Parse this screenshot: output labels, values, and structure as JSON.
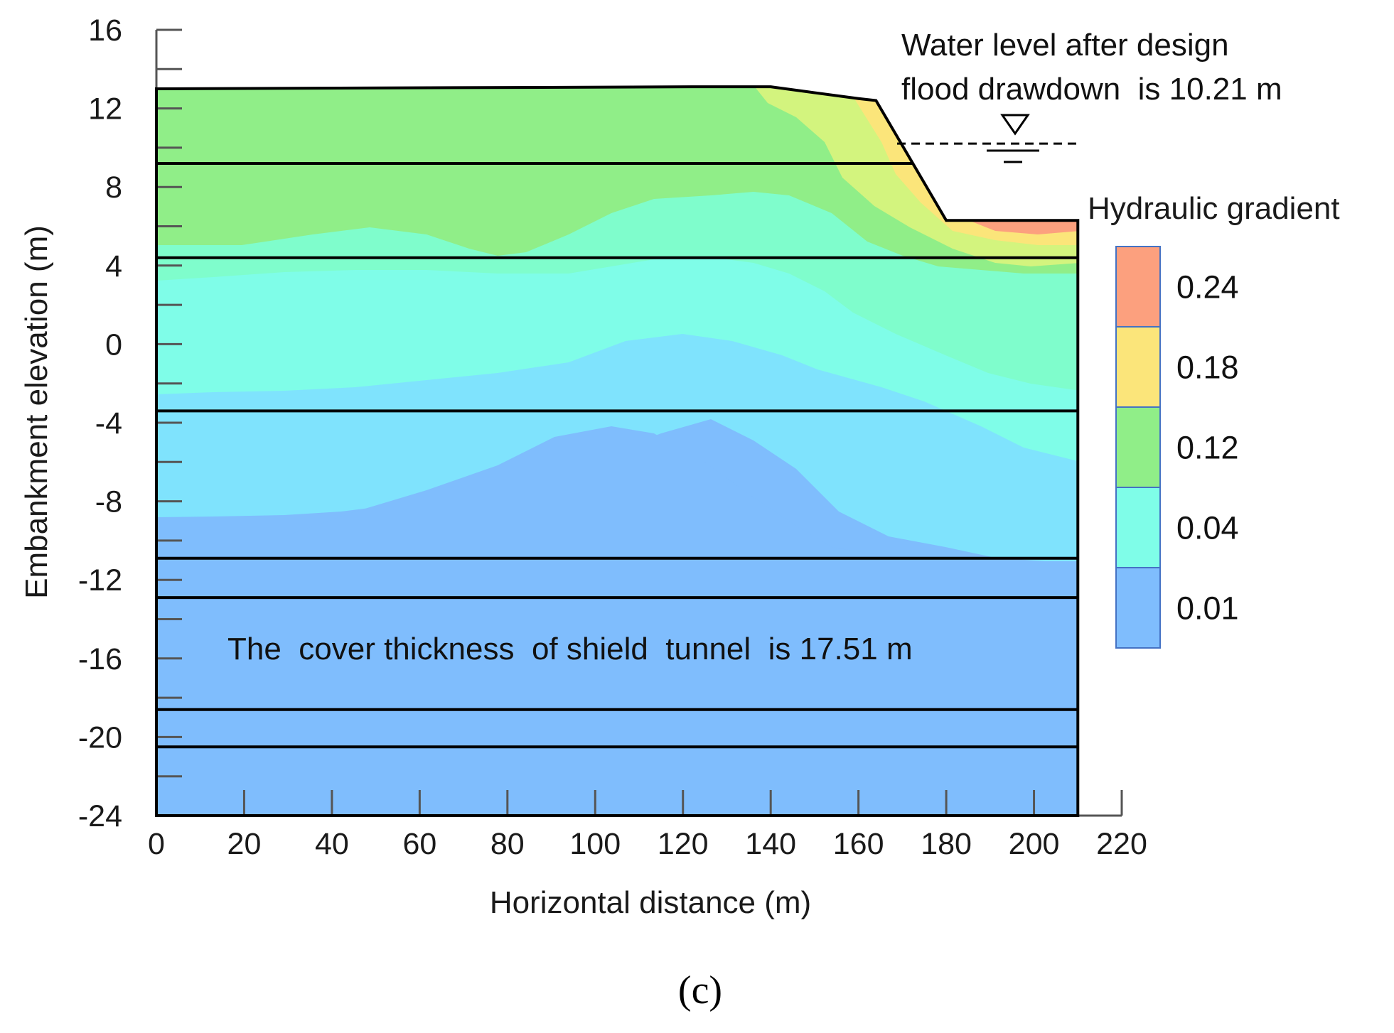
{
  "chart_data": {
    "type": "heatmap",
    "title": "",
    "xlabel": "Horizontal distance (m)",
    "ylabel": "Embankment elevation (m)",
    "xlim": [
      0,
      220
    ],
    "ylim": [
      -24,
      16
    ],
    "x_ticks": [
      "0",
      "20",
      "40",
      "60",
      "80",
      "100",
      "120",
      "140",
      "160",
      "180",
      "200",
      "220"
    ],
    "y_ticks": [
      "16",
      "12",
      "8",
      "4",
      "0",
      "-4",
      "-8",
      "-12",
      "-16",
      "-20",
      "-24"
    ],
    "legend": {
      "title": "Hydraulic gradient",
      "entries": [
        {
          "label": "0.24",
          "color": "#fca07e"
        },
        {
          "label": "0.18",
          "color": "#fbe57a"
        },
        {
          "label": "0.12",
          "color": "#90ee88"
        },
        {
          "label": "0.04",
          "color": "#7ffde8"
        },
        {
          "label": "0.01",
          "color": "#7fbdfd"
        }
      ]
    },
    "embankment_profile": [
      [
        0,
        13
      ],
      [
        122,
        13.1
      ],
      [
        140,
        13.1
      ],
      [
        160,
        12.5
      ],
      [
        164,
        12.4
      ],
      [
        180,
        6.3
      ],
      [
        210,
        6.3
      ]
    ],
    "layer_boundaries": [
      9.2,
      4.4,
      -3.4,
      -10.9,
      -12.9,
      -18.6,
      -20.5
    ],
    "water_level": {
      "elevation": 10.21,
      "label_line1": "Water level after design",
      "label_line2": "flood drawdown  is 10.21 m"
    },
    "annotation": "The  cover thickness  of shield  tunnel  is 17.51 m",
    "caption": "(c)"
  }
}
